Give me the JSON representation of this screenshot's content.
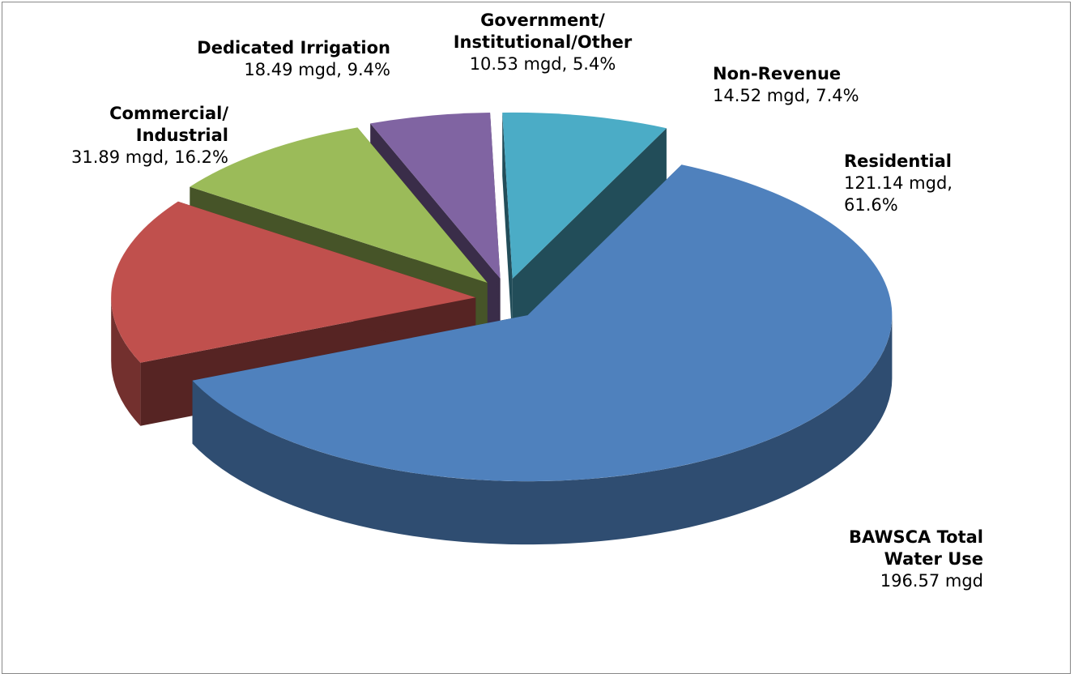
{
  "chart_data": {
    "type": "pie",
    "categories": [
      "Residential",
      "Commercial/\nIndustrial",
      "Dedicated Irrigation",
      "Government/\nInstitutional/Other",
      "Non-Revenue"
    ],
    "values": [
      121.14,
      31.89,
      18.49,
      10.53,
      14.52
    ],
    "value_labels": [
      "121.14 mgd, 61.6%",
      "31.89 mgd, 16.2%",
      "18.49 mgd, 9.4%",
      "10.53 mgd, 5.4%",
      "14.52 mgd, 7.4%"
    ],
    "colors": [
      "#4f81bd",
      "#c0504d",
      "#9bbb59",
      "#8064a2",
      "#4bacc6"
    ],
    "total_label": "BAWSCA Total\nWater Use",
    "total": {
      "value": 196.57,
      "label": "196.57 mgd"
    }
  }
}
